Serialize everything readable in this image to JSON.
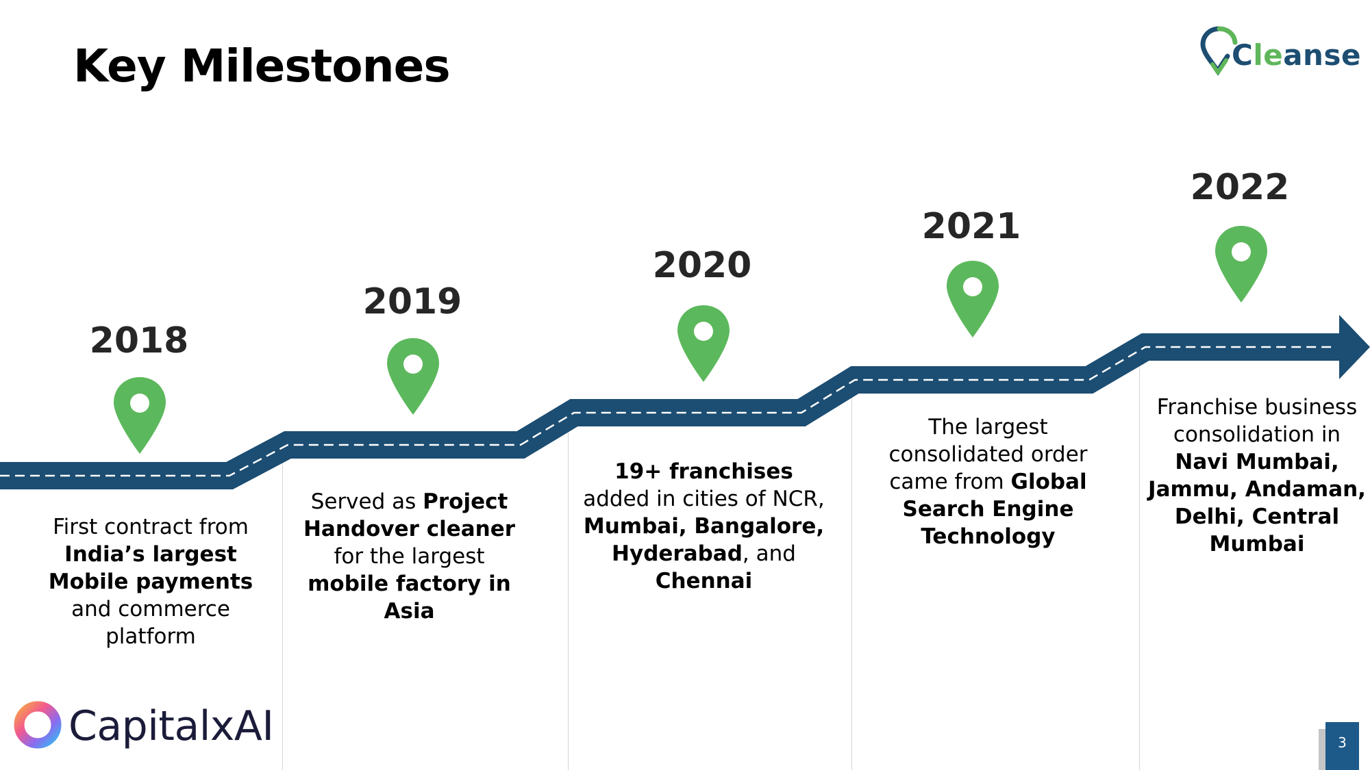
{
  "header": {
    "title": "Key Milestones",
    "brand": {
      "name_prefix": "C",
      "name_accent": "le",
      "name_suffix": "anse"
    }
  },
  "colors": {
    "road": "#1c4d72",
    "pin": "#5cb85c",
    "year": "#262626",
    "footer_brand": "#1b1b3a",
    "page_badge": "#1d5a8a"
  },
  "milestones": [
    {
      "year": "2018",
      "parts": [
        [
          "First contract from ",
          false
        ],
        [
          "India’s largest Mobile payments",
          true
        ],
        [
          " and commerce platform",
          false
        ]
      ]
    },
    {
      "year": "2019",
      "parts": [
        [
          "Served as ",
          false
        ],
        [
          "Project Handover cleaner",
          true
        ],
        [
          " for the largest ",
          false
        ],
        [
          "mobile factory in Asia",
          true
        ]
      ]
    },
    {
      "year": "2020",
      "parts": [
        [
          "19+ franchises",
          true
        ],
        [
          " added in cities of NCR, ",
          false
        ],
        [
          "Mumbai, Bangalore, Hyderabad",
          true
        ],
        [
          ", and ",
          false
        ],
        [
          "Chennai",
          true
        ]
      ]
    },
    {
      "year": "2021",
      "parts": [
        [
          "The largest consolidated order came from ",
          false
        ],
        [
          "Global Search Engine Technology",
          true
        ]
      ]
    },
    {
      "year": "2022",
      "parts": [
        [
          "Franchise business consolidation in ",
          false
        ],
        [
          "Navi Mumbai, Jammu, Andaman, Delhi, Central Mumbai",
          true
        ]
      ]
    }
  ],
  "footer": {
    "brand": "CapitalxAI",
    "page_number": "3"
  }
}
